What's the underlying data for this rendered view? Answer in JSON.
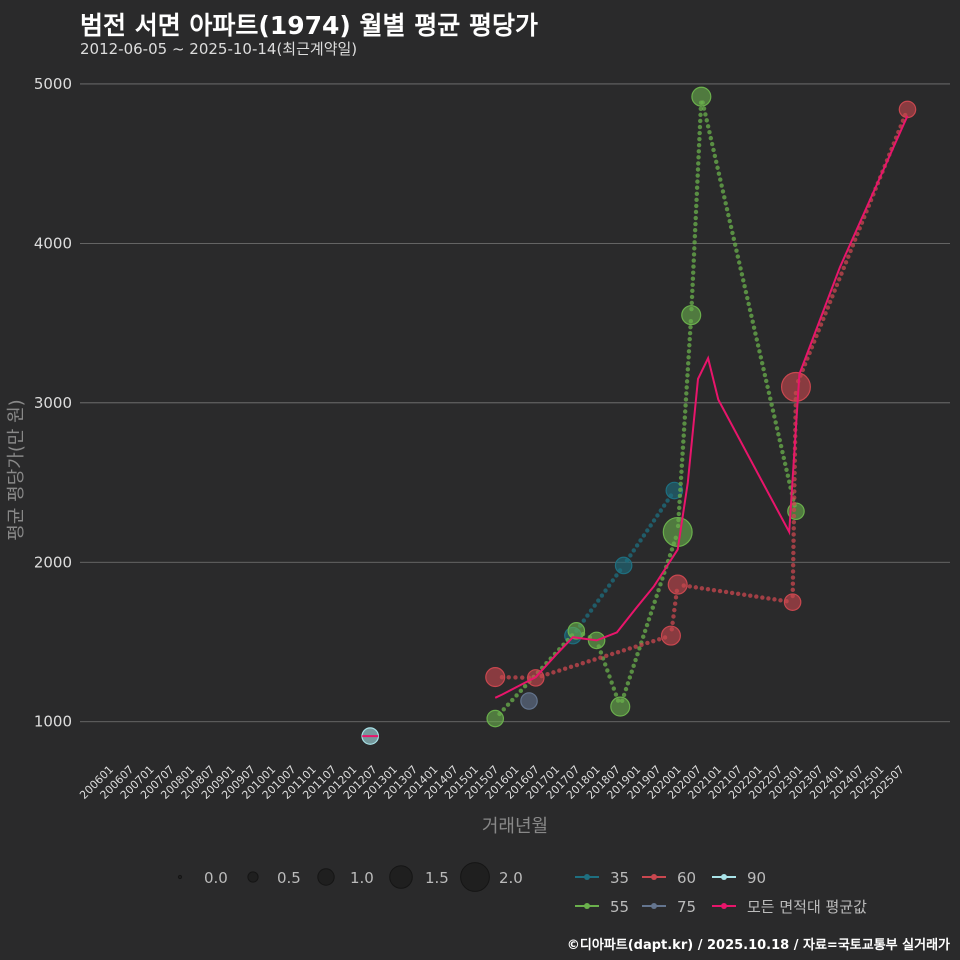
{
  "title": "범전 서면 아파트(1974) 월별 평균 평당가",
  "subtitle": "2012-06-05 ~ 2025-10-14(최근계약일)",
  "credit": "©디아파트(dapt.kr) / 2025.10.18 / 자료=국토교통부 실거래가",
  "colors": {
    "s35": "#1e6f80",
    "s55": "#6ab04c",
    "s60": "#c9474f",
    "s75": "#64758f",
    "s90": "#a9e3e8",
    "avg": "#e8156b",
    "grid": "#777777"
  },
  "chart_data": {
    "type": "scatter",
    "title": "범전 서면 아파트(1974) 월별 평균 평당가",
    "xlabel": "거래년월",
    "ylabel": "평균 평당가(만 원)",
    "ylim": [
      760,
      5150
    ],
    "yticks": [
      1000,
      2000,
      3000,
      4000,
      5000
    ],
    "xlim": [
      "2006-01",
      "2026-01"
    ],
    "xticks": [
      "200601",
      "200607",
      "200701",
      "200707",
      "200801",
      "200807",
      "200901",
      "200907",
      "201001",
      "201007",
      "201101",
      "201107",
      "201201",
      "201207",
      "201301",
      "201307",
      "201401",
      "201407",
      "201501",
      "201507",
      "201601",
      "201607",
      "201701",
      "201707",
      "201801",
      "201807",
      "201901",
      "201907",
      "202001",
      "202007",
      "202101",
      "202107",
      "202201",
      "202207",
      "202301",
      "202307",
      "202401",
      "202407",
      "202501",
      "202507"
    ],
    "series": [
      {
        "name": "35",
        "color_key": "s35",
        "points": [
          {
            "x": "2017-06",
            "y": 1540,
            "size": 1.0
          },
          {
            "x": "2018-09",
            "y": 1980,
            "size": 1.0
          },
          {
            "x": "2019-12",
            "y": 2450,
            "size": 1.0
          }
        ]
      },
      {
        "name": "55",
        "color_key": "s55",
        "points": [
          {
            "x": "2015-07",
            "y": 1020,
            "size": 1.0
          },
          {
            "x": "2017-07",
            "y": 1570,
            "size": 1.0
          },
          {
            "x": "2018-01",
            "y": 1510,
            "size": 1.0
          },
          {
            "x": "2018-08",
            "y": 1095,
            "size": 1.2
          },
          {
            "x": "2020-01",
            "y": 2190,
            "size": 2.0
          },
          {
            "x": "2020-05",
            "y": 3550,
            "size": 1.2
          },
          {
            "x": "2020-08",
            "y": 4920,
            "size": 1.2
          },
          {
            "x": "2022-12",
            "y": 2320,
            "size": 1.0
          }
        ]
      },
      {
        "name": "60",
        "color_key": "s60",
        "points": [
          {
            "x": "2015-07",
            "y": 1280,
            "size": 1.2
          },
          {
            "x": "2016-07",
            "y": 1275,
            "size": 1.0
          },
          {
            "x": "2019-11",
            "y": 1540,
            "size": 1.2
          },
          {
            "x": "2020-01",
            "y": 1860,
            "size": 1.2
          },
          {
            "x": "2022-11",
            "y": 1750,
            "size": 1.0
          },
          {
            "x": "2022-12",
            "y": 3100,
            "size": 2.0
          },
          {
            "x": "2025-09",
            "y": 4840,
            "size": 1.0
          }
        ]
      },
      {
        "name": "75",
        "color_key": "s75",
        "points": [
          {
            "x": "2016-05",
            "y": 1130,
            "size": 1.0
          }
        ]
      },
      {
        "name": "90",
        "color_key": "s90",
        "points": [
          {
            "x": "2012-06",
            "y": 910,
            "size": 1.0
          }
        ]
      },
      {
        "name": "모든 면적대 평균값",
        "color_key": "avg",
        "line": [
          {
            "x": "2015-07",
            "y": 1150
          },
          {
            "x": "2015-09",
            "y": 1170
          },
          {
            "x": "2016-07",
            "y": 1280
          },
          {
            "x": "2017-01",
            "y": 1420
          },
          {
            "x": "2017-06",
            "y": 1530
          },
          {
            "x": "2018-01",
            "y": 1510
          },
          {
            "x": "2018-07",
            "y": 1560
          },
          {
            "x": "2019-01",
            "y": 1720
          },
          {
            "x": "2019-06",
            "y": 1850
          },
          {
            "x": "2020-01",
            "y": 2080
          },
          {
            "x": "2020-04",
            "y": 2500
          },
          {
            "x": "2020-07",
            "y": 3150
          },
          {
            "x": "2020-10",
            "y": 3280
          },
          {
            "x": "2021-01",
            "y": 3020
          },
          {
            "x": "2022-10",
            "y": 2190
          },
          {
            "x": "2023-01",
            "y": 3180
          },
          {
            "x": "2024-01",
            "y": 3850
          },
          {
            "x": "2025-09",
            "y": 4800
          }
        ]
      }
    ],
    "size_legend": {
      "values": [
        "0.0",
        "0.5",
        "1.0",
        "1.5",
        "2.0"
      ]
    },
    "color_legend": {
      "entries": [
        {
          "name": "35",
          "color_key": "s35"
        },
        {
          "name": "60",
          "color_key": "s60"
        },
        {
          "name": "90",
          "color_key": "s90"
        },
        {
          "name": "55",
          "color_key": "s55"
        },
        {
          "name": "75",
          "color_key": "s75"
        },
        {
          "name": "모든 면적대 평균값",
          "color_key": "avg"
        }
      ]
    }
  }
}
